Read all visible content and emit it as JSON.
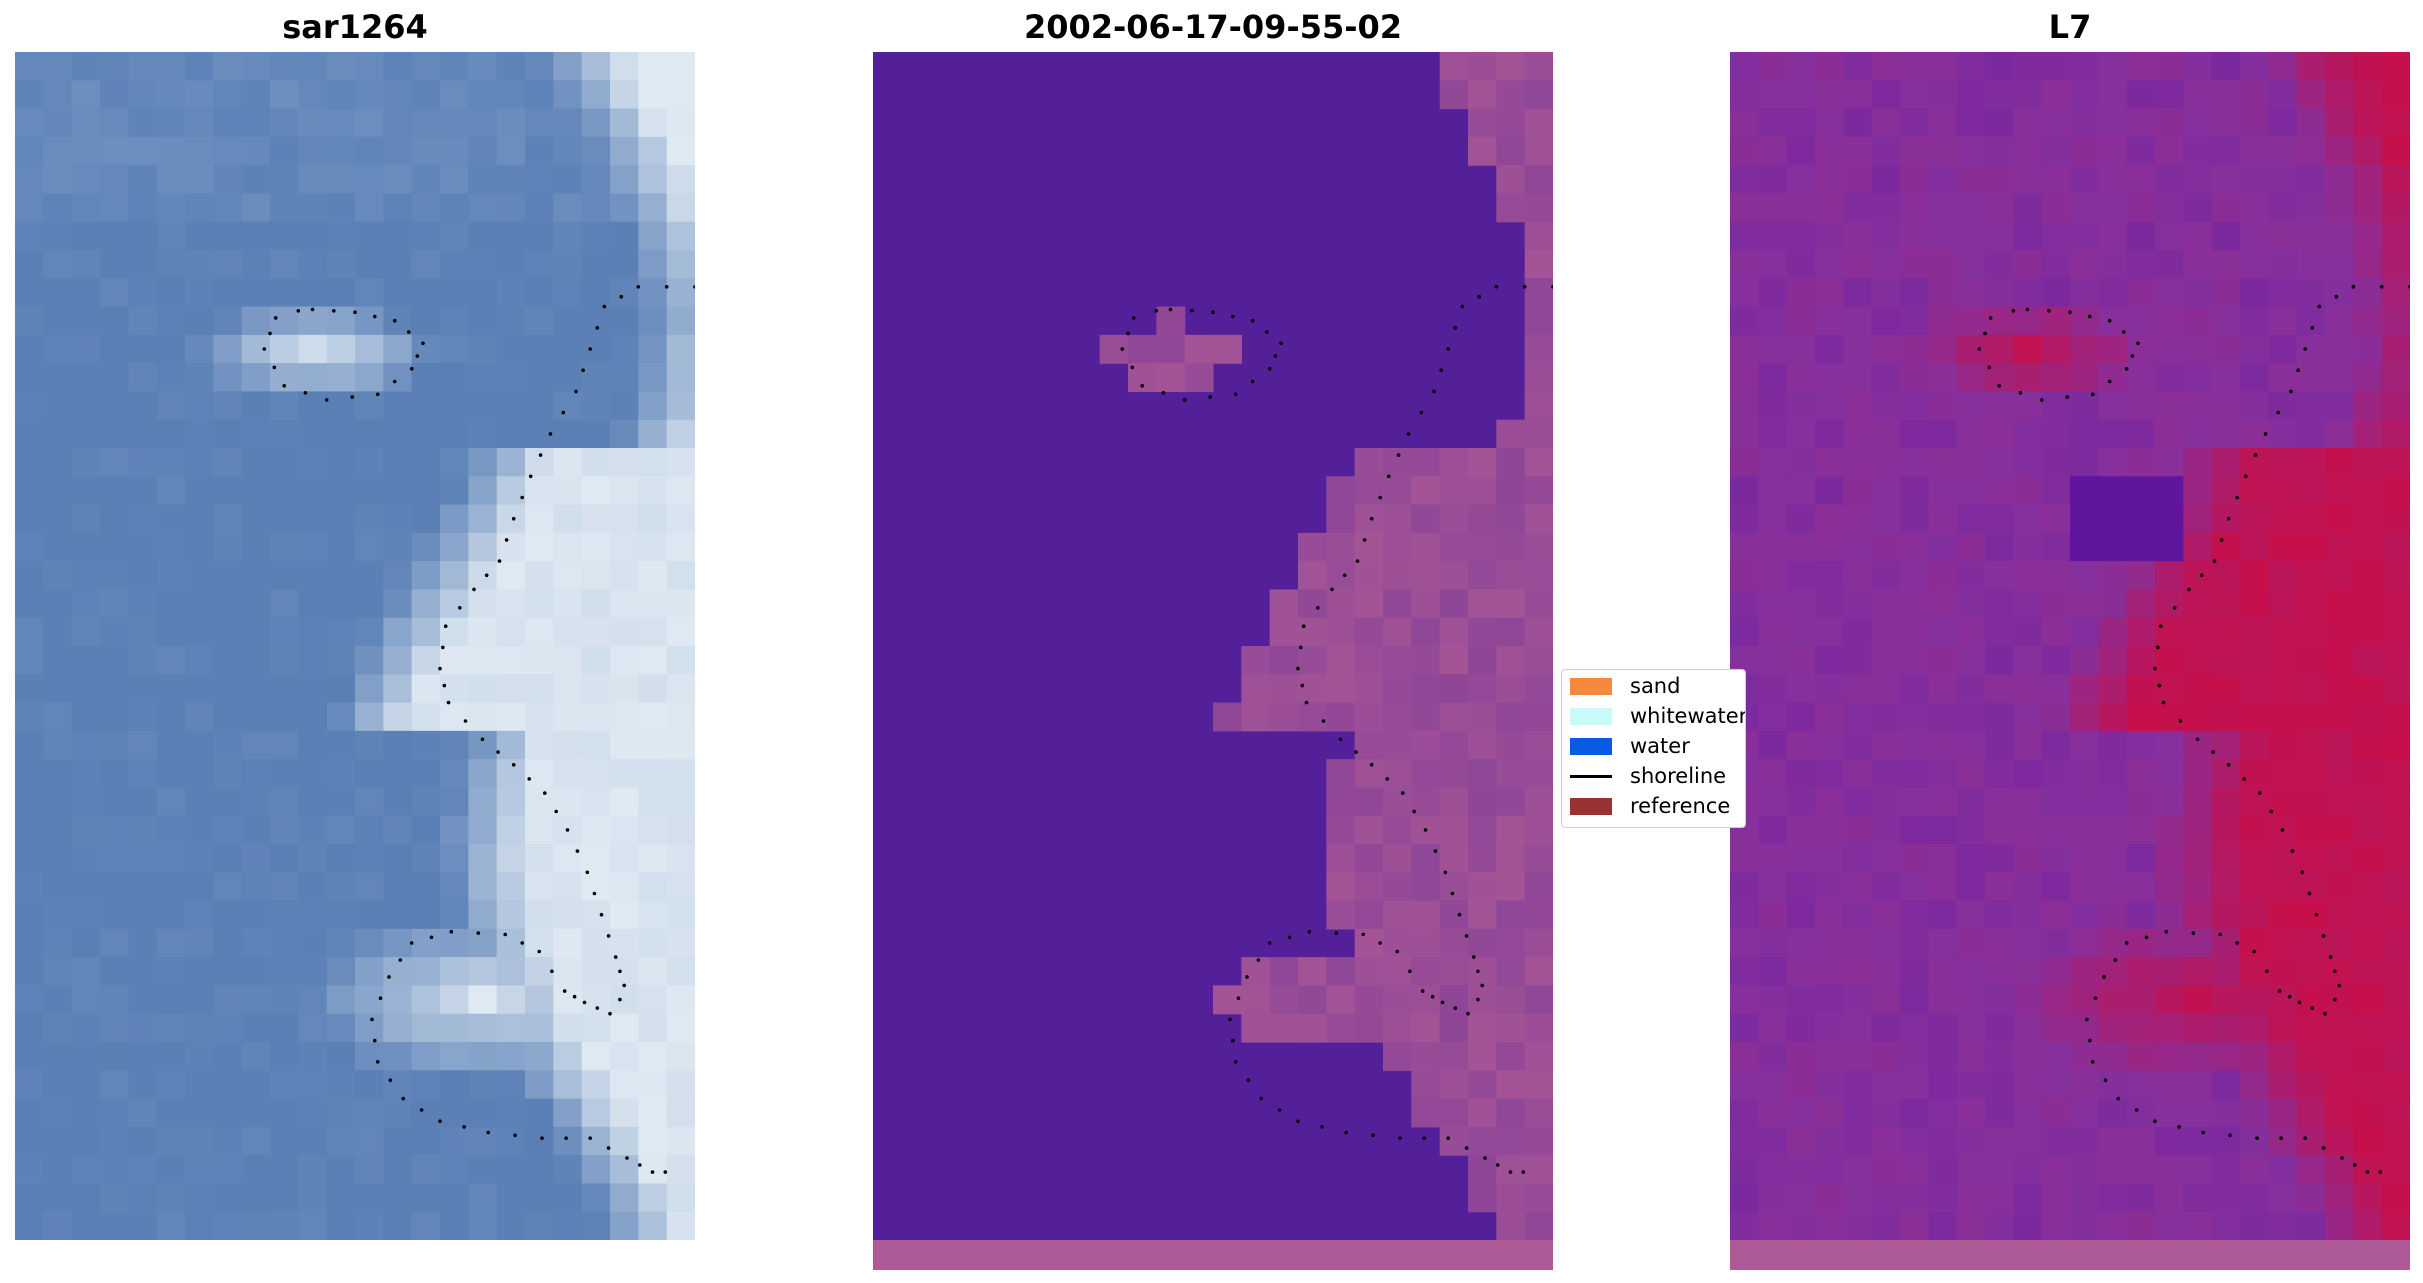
{
  "titles": [
    "sar1264",
    "2002-06-17-09-55-02",
    "L7"
  ],
  "legend": {
    "items": [
      {
        "label": "sand",
        "color": "#f5883c",
        "kind": "patch"
      },
      {
        "label": "whitewater",
        "color": "#c8fafa",
        "kind": "patch"
      },
      {
        "label": "water",
        "color": "#0a5ae6",
        "kind": "patch"
      },
      {
        "label": "shoreline",
        "color": "#000000",
        "kind": "line"
      },
      {
        "label": "reference",
        "color": "#9b3232",
        "kind": "patch"
      }
    ]
  },
  "colors": {
    "rgb_water": "#5a80b6",
    "rgb_bright": "#dfe9f2",
    "class_background": "#54209a",
    "class_land": "#ad5a96",
    "mndwi_low": "#86309e",
    "mndwi_high": "#c70f4a"
  }
}
